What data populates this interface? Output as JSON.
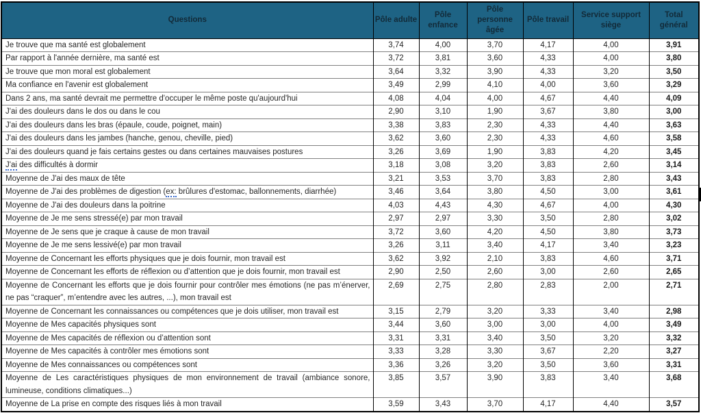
{
  "table": {
    "colors": {
      "header_bg": "#1E6384",
      "header_text": "#122A38",
      "border": "#000000",
      "row_line": "#808080",
      "text": "#262626",
      "squiggle_underline": "#3A6BD0"
    },
    "header": {
      "questions": "Questions",
      "columns": [
        "Pôle adulte",
        "Pôle enfance",
        "Pôle personne âgée",
        "Pôle travail",
        "Service support siège",
        "Total général"
      ]
    },
    "rows": [
      {
        "q": "Je trouve que ma santé est globalement",
        "v": [
          "3,74",
          "4,00",
          "3,70",
          "4,17",
          "4,00"
        ],
        "total": "3,91"
      },
      {
        "q": "Par rapport à l'année dernière, ma santé est",
        "v": [
          "3,72",
          "3,81",
          "3,60",
          "4,33",
          "4,00"
        ],
        "total": "3,80"
      },
      {
        "q": "Je trouve que mon moral est globalement",
        "v": [
          "3,64",
          "3,32",
          "3,90",
          "4,33",
          "3,20"
        ],
        "total": "3,50"
      },
      {
        "q": "Ma confiance en l'avenir est globalement",
        "v": [
          "3,49",
          "2,99",
          "4,10",
          "4,00",
          "3,60"
        ],
        "total": "3,29"
      },
      {
        "q": "Dans 2 ans, ma santé devrait me permettre d'occuper le même poste qu'aujourd'hui",
        "v": [
          "4,08",
          "4,04",
          "4,00",
          "4,67",
          "4,40"
        ],
        "total": "4,09"
      },
      {
        "q": "J'ai des douleurs dans le dos ou dans le cou",
        "v": [
          "2,90",
          "3,10",
          "1,90",
          "3,67",
          "3,80"
        ],
        "total": "3,00"
      },
      {
        "q": "J'ai des douleurs dans les bras (épaule, coude, poignet, main)",
        "v": [
          "3,38",
          "3,83",
          "2,30",
          "4,33",
          "4,40"
        ],
        "total": "3,63"
      },
      {
        "q": "J'ai des douleurs dans les jambes (hanche, genou, cheville, pied)",
        "v": [
          "3,62",
          "3,60",
          "2,30",
          "4,33",
          "4,60"
        ],
        "total": "3,58"
      },
      {
        "q": "J'ai des douleurs quand je fais certains gestes ou dans certaines mauvaises postures",
        "v": [
          "3,26",
          "3,69",
          "1,90",
          "3,83",
          "4,20"
        ],
        "total": "3,45"
      },
      {
        "q": [
          {
            "t": "J'ai",
            "u": true
          },
          {
            "t": " des difficultés à dormir"
          }
        ],
        "v": [
          "3,18",
          "3,08",
          "3,20",
          "3,83",
          "2,60"
        ],
        "total": "3,14"
      },
      {
        "q": "Moyenne de J'ai des maux de tête",
        "v": [
          "3,21",
          "3,53",
          "3,70",
          "3,83",
          "2,80"
        ],
        "total": "3,43"
      },
      {
        "q": [
          {
            "t": "Moyenne de J'ai des problèmes de digestion ("
          },
          {
            "t": "ex:",
            "u": true
          },
          {
            "t": " brûlures d'estomac, ballonnements, diarrhée)"
          }
        ],
        "v": [
          "3,46",
          "3,64",
          "3,80",
          "4,50",
          "3,00"
        ],
        "total": "3,61"
      },
      {
        "q": "Moyenne de J'ai des douleurs dans la poitrine",
        "v": [
          "4,03",
          "4,43",
          "4,30",
          "4,67",
          "4,00"
        ],
        "total": "4,30"
      },
      {
        "q": "Moyenne de Je me sens stressé(e) par mon travail",
        "v": [
          "2,97",
          "2,97",
          "3,30",
          "3,50",
          "2,80"
        ],
        "total": "3,02"
      },
      {
        "q": "Moyenne de Je sens que je craque à cause de mon travail",
        "v": [
          "3,72",
          "3,60",
          "4,20",
          "4,50",
          "3,80"
        ],
        "total": "3,73"
      },
      {
        "q": "Moyenne de Je me sens lessivé(e) par mon travail",
        "v": [
          "3,26",
          "3,11",
          "3,40",
          "4,17",
          "3,40"
        ],
        "total": "3,23"
      },
      {
        "q": "Moyenne de Concernant les efforts physiques que je dois fournir, mon travail est",
        "v": [
          "3,62",
          "3,92",
          "2,10",
          "3,83",
          "4,60"
        ],
        "total": "3,71"
      },
      {
        "q": "Moyenne de Concernant les efforts de réflexion ou d’attention que je dois fournir, mon travail est",
        "v": [
          "2,90",
          "2,50",
          "2,60",
          "3,00",
          "2,60"
        ],
        "total": "2,65"
      },
      {
        "q": "Moyenne de Concernant les efforts que je dois fournir pour contrôler mes émotions (ne pas m’énerver, ne pas “craquer”, m’entendre avec les autres, ...), mon travail est",
        "v": [
          "2,69",
          "2,75",
          "2,80",
          "2,83",
          "2,00"
        ],
        "total": "2,71",
        "tall": true,
        "justify": true
      },
      {
        "q": "Moyenne de Concernant les connaissances ou compétences que je dois utiliser, mon travail est",
        "v": [
          "3,15",
          "2,79",
          "3,20",
          "3,33",
          "3,40"
        ],
        "total": "2,98"
      },
      {
        "q": "Moyenne de Mes capacités physiques sont",
        "v": [
          "3,44",
          "3,60",
          "3,00",
          "3,00",
          "4,00"
        ],
        "total": "3,49"
      },
      {
        "q": "Moyenne de Mes capacités de réflexion ou d’attention sont",
        "v": [
          "3,31",
          "3,31",
          "3,40",
          "3,50",
          "3,20"
        ],
        "total": "3,32"
      },
      {
        "q": "Moyenne de Mes capacités à contrôler mes émotions sont",
        "v": [
          "3,33",
          "3,28",
          "3,30",
          "3,67",
          "2,20"
        ],
        "total": "3,27"
      },
      {
        "q": "Moyenne de Mes connaissances ou compétences sont",
        "v": [
          "3,36",
          "3,26",
          "3,20",
          "3,50",
          "3,60"
        ],
        "total": "3,31"
      },
      {
        "q": "Moyenne de Les caractéristiques physiques de mon environnement de travail (ambiance sonore, lumineuse, conditions climatiques...)",
        "v": [
          "3,85",
          "3,57",
          "3,90",
          "3,83",
          "3,40"
        ],
        "total": "3,68",
        "tall": true,
        "justify": true
      },
      {
        "q": "Moyenne de La prise en compte des risques liés à mon travail",
        "v": [
          "3,59",
          "3,43",
          "3,70",
          "4,17",
          "4,40"
        ],
        "total": "3,57"
      }
    ]
  }
}
